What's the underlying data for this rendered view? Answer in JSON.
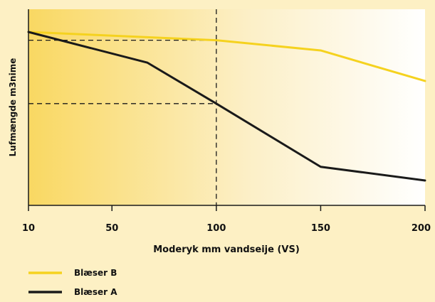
{
  "chart_data": {
    "type": "line",
    "xlabel": "Moderyk mm vandseije (VS)",
    "ylabel": "Lufmængde m3nime",
    "x_ticks": [
      10,
      50,
      100,
      150,
      200
    ],
    "xlim": [
      10,
      200
    ],
    "ylim": [
      0,
      100
    ],
    "legend_placement": "bottom-left",
    "grid": false,
    "series": [
      {
        "name": "Blæser B",
        "color": "#f5d21f",
        "x": [
          10,
          100,
          150,
          200
        ],
        "y": [
          100,
          94.8,
          88.4,
          69.2
        ]
      },
      {
        "name": "Blæser A",
        "color": "#1a1a1a",
        "x": [
          10,
          67,
          100,
          150,
          200
        ],
        "y": [
          100,
          80.7,
          55,
          15.3,
          6.7
        ]
      }
    ],
    "reference_lines": [
      {
        "from": [
          10,
          94.8
        ],
        "corner": [
          100,
          94.8
        ],
        "to": [
          100,
          0
        ]
      },
      {
        "from": [
          10,
          55
        ],
        "corner": [
          100,
          55
        ]
      }
    ]
  }
}
